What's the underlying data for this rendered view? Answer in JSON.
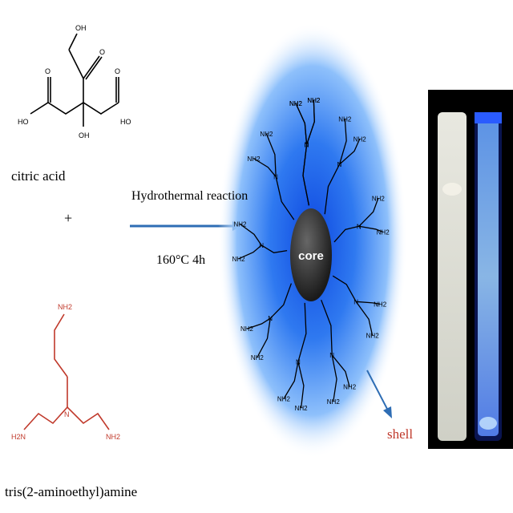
{
  "reactant1": {
    "name": "citric acid",
    "oh_labels": [
      "OH",
      "HO",
      "HO",
      "OH"
    ],
    "o_labels": [
      "O",
      "O",
      "O"
    ]
  },
  "plus_sign": "+",
  "reactant2": {
    "name": "tris(2-aminoethyl)amine",
    "amine_labels": [
      "NH2",
      "H2N",
      "NH2"
    ],
    "n_label": "N"
  },
  "reaction": {
    "condition": "Hydrothermal reaction",
    "temperature_time": "160°C  4h"
  },
  "product": {
    "core_label": "core",
    "shell_label": "shell",
    "n_label": "N",
    "amine_label": "NH2"
  },
  "colors": {
    "reactant2": "#c0392b",
    "arrow": "#2e6db4",
    "glow": "#3a86ff",
    "core": "#333333",
    "shell_label": "#c0392b",
    "vial_glow": "#3a7bff"
  }
}
